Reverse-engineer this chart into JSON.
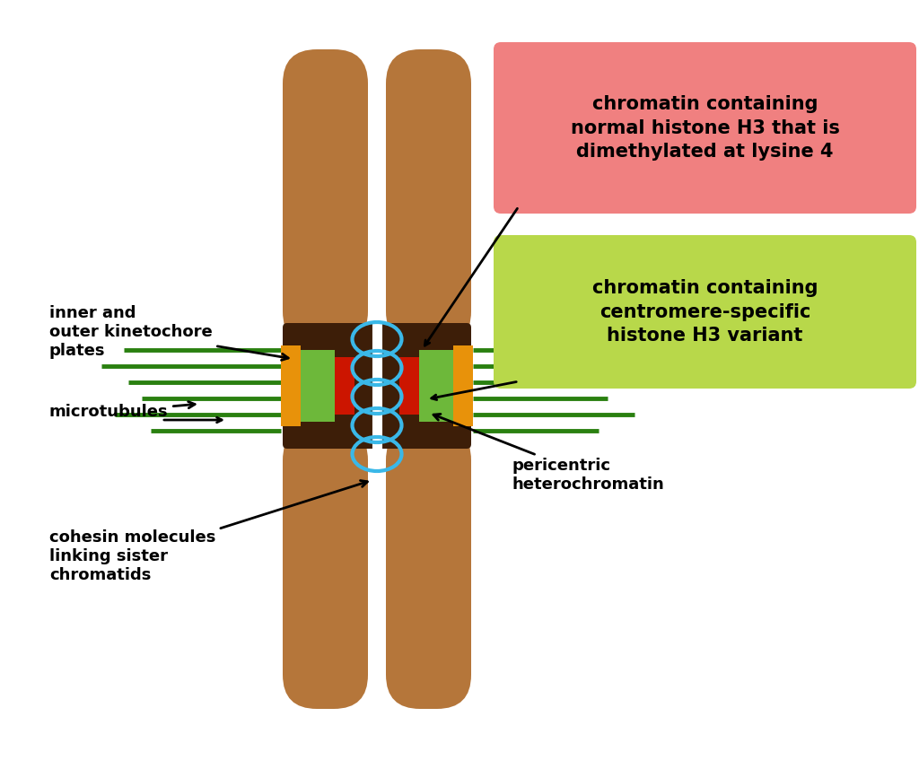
{
  "bg_color": "#ffffff",
  "chromatid_color": "#b5763a",
  "chromatid_shadow": "#9a6030",
  "centromere_dark_color": "#3d1e08",
  "centromere_green_color": "#6db83a",
  "centromere_red_color": "#cc1500",
  "centromere_orange_color": "#e8920a",
  "spindle_color": "#ffffff",
  "arc_color": "#3ab8e8",
  "microtubule_color": "#2a8010",
  "label_box1_bg": "#f08080",
  "label_box1_text": "chromatin containing\nnormal histone H3 that is\ndimethylated at lysine 4",
  "label_box2_bg": "#b8d84a",
  "label_box2_text": "chromatin containing\ncentromere-specific\nhistone H3 variant",
  "label_inner_outer": "inner and\nouter kinetochore\nplates",
  "label_microtubules": "microtubules",
  "label_cohesin": "cohesin molecules\nlinking sister\nchromatids",
  "label_pericentric": "pericentric\nheterochromatin",
  "text_color": "#000000",
  "font_size_label": 13,
  "font_size_box": 15
}
